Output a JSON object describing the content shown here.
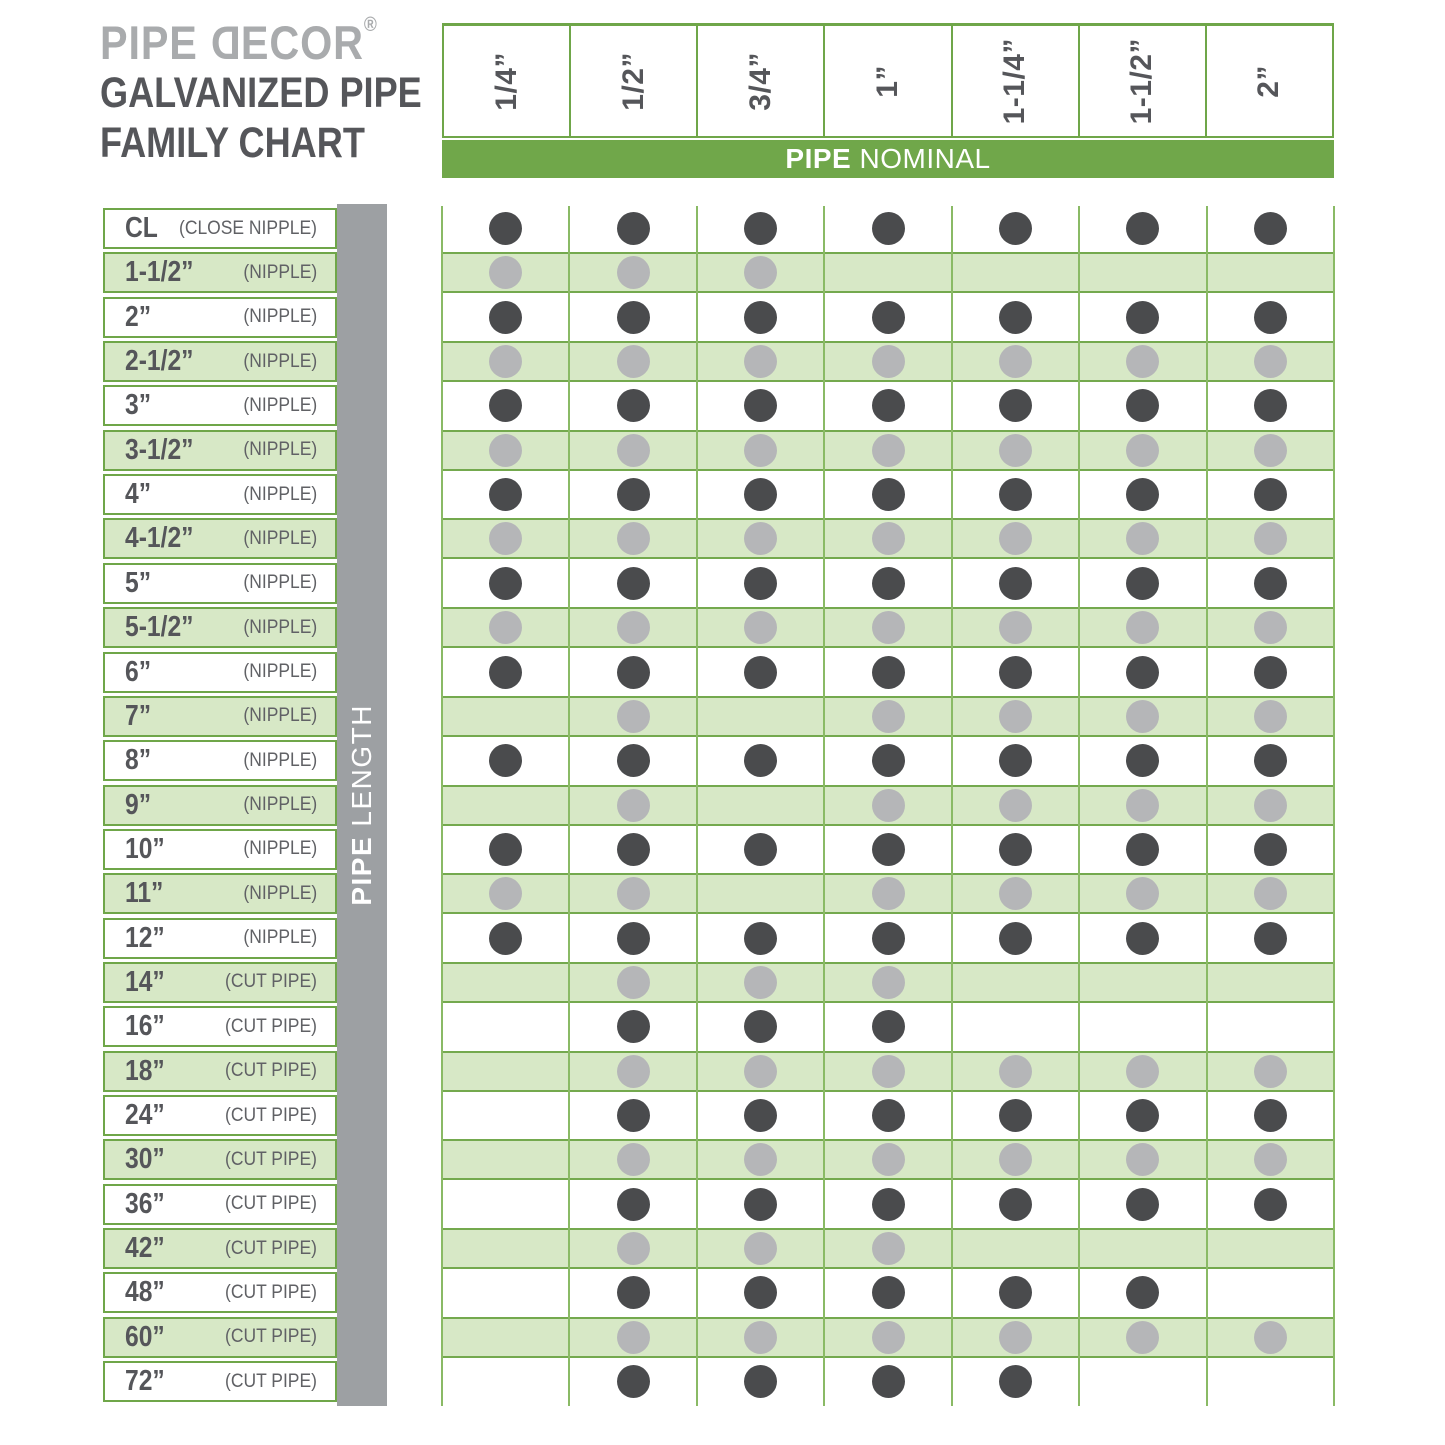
{
  "logo": {
    "word1": "PIPE ",
    "d": "D",
    "rest": "ECOR",
    "reg": "®"
  },
  "title": {
    "line1": "GALVANIZED PIPE",
    "line2": "FAMILY CHART"
  },
  "banner": {
    "bold": "PIPE",
    "regular": " NOMINAL"
  },
  "side_bar": {
    "bold": "PIPE",
    "regular": " LENGTH"
  },
  "colors": {
    "banner_green": "#70a74a",
    "row_green": "#d7e8c6",
    "band_edge_green": "#74a94e",
    "grid_line_green": "#8aba65",
    "label_border_green": "#6fa649",
    "sidebar_gray": "#9da0a3",
    "dot_dark": "#4a4b4d",
    "dot_light": "#b5b6b8",
    "text_dark": "#55565a",
    "logo_gray": "#a9abad"
  },
  "chart_data": {
    "type": "table",
    "title": "GALVANIZED PIPE FAMILY CHART",
    "column_header_label": "PIPE NOMINAL",
    "row_header_label": "PIPE LENGTH",
    "columns": [
      "1/4”",
      "1/2”",
      "3/4”",
      "1”",
      "1-1/4”",
      "1-1/2”",
      "2”"
    ],
    "rows": [
      {
        "size": "CL",
        "type": "(CLOSE NIPPLE)",
        "shaded": false,
        "dots": [
          1,
          1,
          1,
          1,
          1,
          1,
          1
        ]
      },
      {
        "size": "1-1/2”",
        "type": "(NIPPLE)",
        "shaded": true,
        "dots": [
          1,
          1,
          1,
          0,
          0,
          0,
          0
        ]
      },
      {
        "size": "2”",
        "type": "(NIPPLE)",
        "shaded": false,
        "dots": [
          1,
          1,
          1,
          1,
          1,
          1,
          1
        ]
      },
      {
        "size": "2-1/2”",
        "type": "(NIPPLE)",
        "shaded": true,
        "dots": [
          1,
          1,
          1,
          1,
          1,
          1,
          1
        ]
      },
      {
        "size": "3”",
        "type": "(NIPPLE)",
        "shaded": false,
        "dots": [
          1,
          1,
          1,
          1,
          1,
          1,
          1
        ]
      },
      {
        "size": "3-1/2”",
        "type": "(NIPPLE)",
        "shaded": true,
        "dots": [
          1,
          1,
          1,
          1,
          1,
          1,
          1
        ]
      },
      {
        "size": "4”",
        "type": "(NIPPLE)",
        "shaded": false,
        "dots": [
          1,
          1,
          1,
          1,
          1,
          1,
          1
        ]
      },
      {
        "size": "4-1/2”",
        "type": "(NIPPLE)",
        "shaded": true,
        "dots": [
          1,
          1,
          1,
          1,
          1,
          1,
          1
        ]
      },
      {
        "size": "5”",
        "type": "(NIPPLE)",
        "shaded": false,
        "dots": [
          1,
          1,
          1,
          1,
          1,
          1,
          1
        ]
      },
      {
        "size": "5-1/2”",
        "type": "(NIPPLE)",
        "shaded": true,
        "dots": [
          1,
          1,
          1,
          1,
          1,
          1,
          1
        ]
      },
      {
        "size": "6”",
        "type": "(NIPPLE)",
        "shaded": false,
        "dots": [
          1,
          1,
          1,
          1,
          1,
          1,
          1
        ]
      },
      {
        "size": "7”",
        "type": "(NIPPLE)",
        "shaded": true,
        "dots": [
          0,
          1,
          0,
          1,
          1,
          1,
          1
        ]
      },
      {
        "size": "8”",
        "type": "(NIPPLE)",
        "shaded": false,
        "dots": [
          1,
          1,
          1,
          1,
          1,
          1,
          1
        ]
      },
      {
        "size": "9”",
        "type": "(NIPPLE)",
        "shaded": true,
        "dots": [
          0,
          1,
          0,
          1,
          1,
          1,
          1
        ]
      },
      {
        "size": "10”",
        "type": "(NIPPLE)",
        "shaded": false,
        "dots": [
          1,
          1,
          1,
          1,
          1,
          1,
          1
        ]
      },
      {
        "size": "11”",
        "type": "(NIPPLE)",
        "shaded": true,
        "dots": [
          1,
          1,
          0,
          1,
          1,
          1,
          1
        ]
      },
      {
        "size": "12”",
        "type": "(NIPPLE)",
        "shaded": false,
        "dots": [
          1,
          1,
          1,
          1,
          1,
          1,
          1
        ]
      },
      {
        "size": "14”",
        "type": "(CUT PIPE)",
        "shaded": true,
        "dots": [
          0,
          1,
          1,
          1,
          0,
          0,
          0
        ]
      },
      {
        "size": "16”",
        "type": "(CUT PIPE)",
        "shaded": false,
        "dots": [
          0,
          1,
          1,
          1,
          0,
          0,
          0
        ]
      },
      {
        "size": "18”",
        "type": "(CUT PIPE)",
        "shaded": true,
        "dots": [
          0,
          1,
          1,
          1,
          1,
          1,
          1
        ]
      },
      {
        "size": "24”",
        "type": "(CUT PIPE)",
        "shaded": false,
        "dots": [
          0,
          1,
          1,
          1,
          1,
          1,
          1
        ]
      },
      {
        "size": "30”",
        "type": "(CUT PIPE)",
        "shaded": true,
        "dots": [
          0,
          1,
          1,
          1,
          1,
          1,
          1
        ]
      },
      {
        "size": "36”",
        "type": "(CUT PIPE)",
        "shaded": false,
        "dots": [
          0,
          1,
          1,
          1,
          1,
          1,
          1
        ]
      },
      {
        "size": "42”",
        "type": "(CUT PIPE)",
        "shaded": true,
        "dots": [
          0,
          1,
          1,
          1,
          0,
          0,
          0
        ]
      },
      {
        "size": "48”",
        "type": "(CUT PIPE)",
        "shaded": false,
        "dots": [
          0,
          1,
          1,
          1,
          1,
          1,
          0
        ]
      },
      {
        "size": "60”",
        "type": "(CUT PIPE)",
        "shaded": true,
        "dots": [
          0,
          1,
          1,
          1,
          1,
          1,
          1
        ]
      },
      {
        "size": "72”",
        "type": "(CUT PIPE)",
        "shaded": false,
        "dots": [
          0,
          1,
          1,
          1,
          1,
          0,
          0
        ]
      }
    ]
  }
}
